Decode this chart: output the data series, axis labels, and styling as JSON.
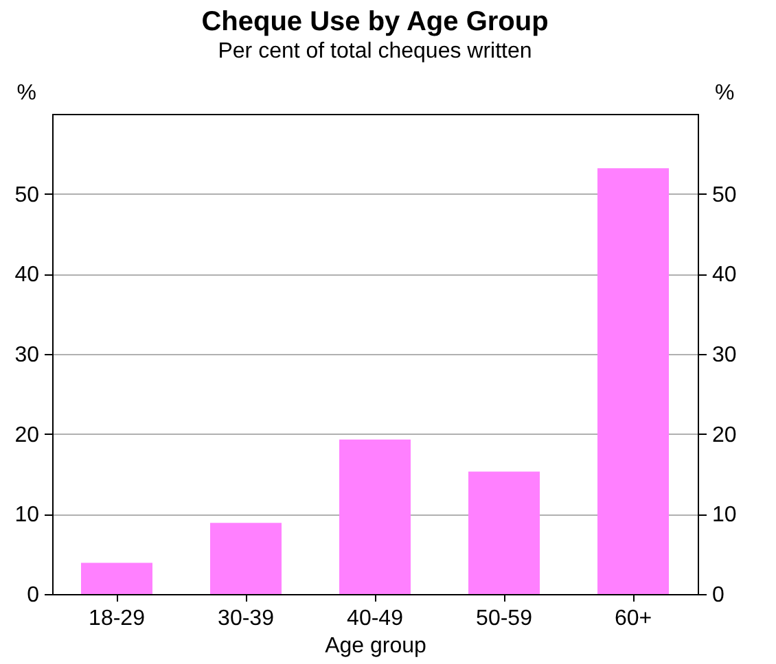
{
  "chart_data": {
    "type": "bar",
    "title": "Cheque Use by Age Group",
    "subtitle": "Per cent of total cheques written",
    "xlabel": "Age group",
    "ylabel": "%",
    "y2label": "%",
    "categories": [
      "18-29",
      "30-39",
      "40-49",
      "50-59",
      "60+"
    ],
    "series": [
      {
        "color": "#ff80ff",
        "values": [
          3.9,
          8.9,
          19.3,
          15.3,
          53.2
        ]
      }
    ],
    "ylim": [
      0,
      60
    ],
    "yticks": [
      0,
      10,
      20,
      30,
      40,
      50
    ],
    "y2lim": [
      0,
      60
    ],
    "y2ticks": [
      0,
      10,
      20,
      30,
      40,
      50
    ],
    "grid": "y"
  }
}
